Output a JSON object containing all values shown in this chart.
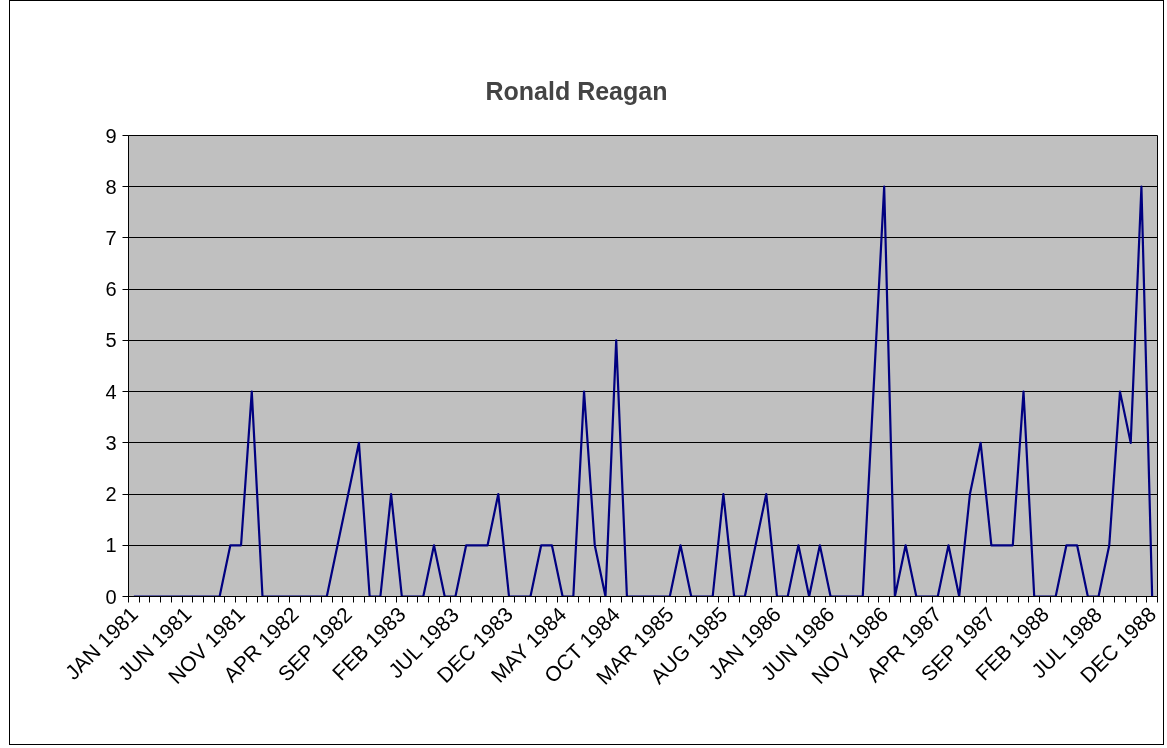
{
  "chart_data": {
    "type": "line",
    "title": "Ronald Reagan",
    "categories": [
      "JAN 1981",
      null,
      null,
      null,
      null,
      "JUN 1981",
      null,
      null,
      null,
      null,
      "NOV 1981",
      null,
      null,
      null,
      null,
      "APR 1982",
      null,
      null,
      null,
      null,
      "SEP 1982",
      null,
      null,
      null,
      null,
      "FEB 1983",
      null,
      null,
      null,
      null,
      "JUL 1983",
      null,
      null,
      null,
      null,
      "DEC 1983",
      null,
      null,
      null,
      null,
      "MAY 1984",
      null,
      null,
      null,
      null,
      "OCT 1984",
      null,
      null,
      null,
      null,
      "MAR 1985",
      null,
      null,
      null,
      null,
      "AUG 1985",
      null,
      null,
      null,
      null,
      "JAN 1986",
      null,
      null,
      null,
      null,
      "JUN 1986",
      null,
      null,
      null,
      null,
      "NOV 1986",
      null,
      null,
      null,
      null,
      "APR 1987",
      null,
      null,
      null,
      null,
      "SEP 1987",
      null,
      null,
      null,
      null,
      "FEB 1988",
      null,
      null,
      null,
      null,
      "JUL 1988",
      null,
      null,
      null,
      null,
      "DEC 1988"
    ],
    "series": [
      {
        "color": "#000080",
        "values": [
          0,
          0,
          0,
          0,
          0,
          0,
          0,
          0,
          0,
          1,
          1,
          4,
          0,
          0,
          0,
          0,
          0,
          0,
          0,
          1,
          2,
          3,
          0,
          0,
          2,
          0,
          0,
          0,
          1,
          0,
          0,
          1,
          1,
          1,
          2,
          0,
          0,
          0,
          1,
          1,
          0,
          0,
          4,
          1,
          0,
          5,
          0,
          0,
          0,
          0,
          0,
          1,
          0,
          0,
          0,
          2,
          0,
          0,
          1,
          2,
          0,
          0,
          1,
          0,
          1,
          0,
          0,
          0,
          0,
          4,
          8,
          0,
          1,
          0,
          0,
          0,
          1,
          0,
          2,
          3,
          1,
          1,
          1,
          4,
          0,
          0,
          0,
          1,
          1,
          0,
          0,
          1,
          4,
          3,
          8,
          0
        ]
      }
    ],
    "ylim": [
      0,
      9
    ],
    "yticks": [
      0,
      1,
      2,
      3,
      4,
      5,
      6,
      7,
      8,
      9
    ],
    "grid": "y",
    "marker": "none",
    "line_style": "solid"
  }
}
